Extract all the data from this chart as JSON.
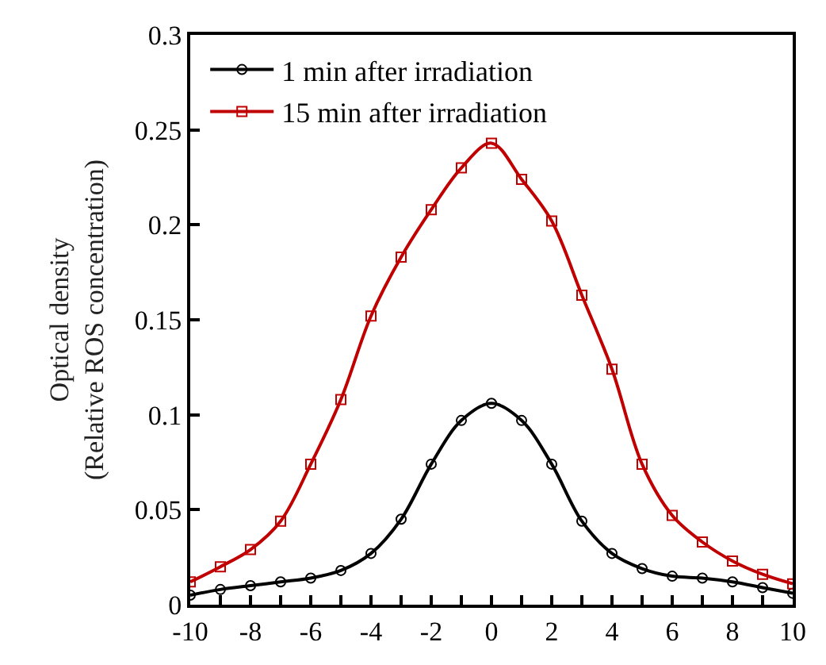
{
  "chart_data": {
    "type": "line",
    "ylabel": "Optical density\n(Relative ROS concentration)",
    "x": [
      -10,
      -9,
      -8,
      -7,
      -6,
      -5,
      -4,
      -3,
      -2,
      -1,
      0,
      1,
      2,
      3,
      4,
      5,
      6,
      7,
      8,
      9,
      10
    ],
    "series": [
      {
        "name": "1 min after irradiation",
        "color": "#000000",
        "marker": "circle",
        "values": [
          0.005,
          0.008,
          0.01,
          0.012,
          0.014,
          0.018,
          0.027,
          0.045,
          0.074,
          0.097,
          0.106,
          0.097,
          0.074,
          0.044,
          0.027,
          0.019,
          0.015,
          0.014,
          0.012,
          0.009,
          0.006
        ]
      },
      {
        "name": "15 min after irradiation",
        "color": "#c00000",
        "marker": "square",
        "values": [
          0.012,
          0.02,
          0.029,
          0.044,
          0.074,
          0.108,
          0.152,
          0.183,
          0.208,
          0.23,
          0.243,
          0.224,
          0.202,
          0.163,
          0.124,
          0.074,
          0.047,
          0.033,
          0.023,
          0.016,
          0.011
        ]
      }
    ],
    "xlim": [
      -10,
      10
    ],
    "xticks": [
      -10,
      {
        "value": -9,
        "label": null
      },
      -8,
      {
        "value": -7,
        "label": null
      },
      -6,
      {
        "value": -5,
        "label": null
      },
      -4,
      {
        "value": -3,
        "label": null
      },
      -2,
      {
        "value": -1,
        "label": null
      },
      0,
      {
        "value": 1,
        "label": null
      },
      2,
      {
        "value": 3,
        "label": null
      },
      4,
      {
        "value": 5,
        "label": null
      },
      6,
      {
        "value": 7,
        "label": null
      },
      8,
      {
        "value": 9,
        "label": null
      },
      10
    ],
    "ylim": [
      0,
      0.3
    ],
    "yticks": [
      0,
      0.05,
      0.1,
      0.15,
      0.2,
      0.25,
      0.3
    ],
    "legend": "top left",
    "line_style": "solid"
  }
}
